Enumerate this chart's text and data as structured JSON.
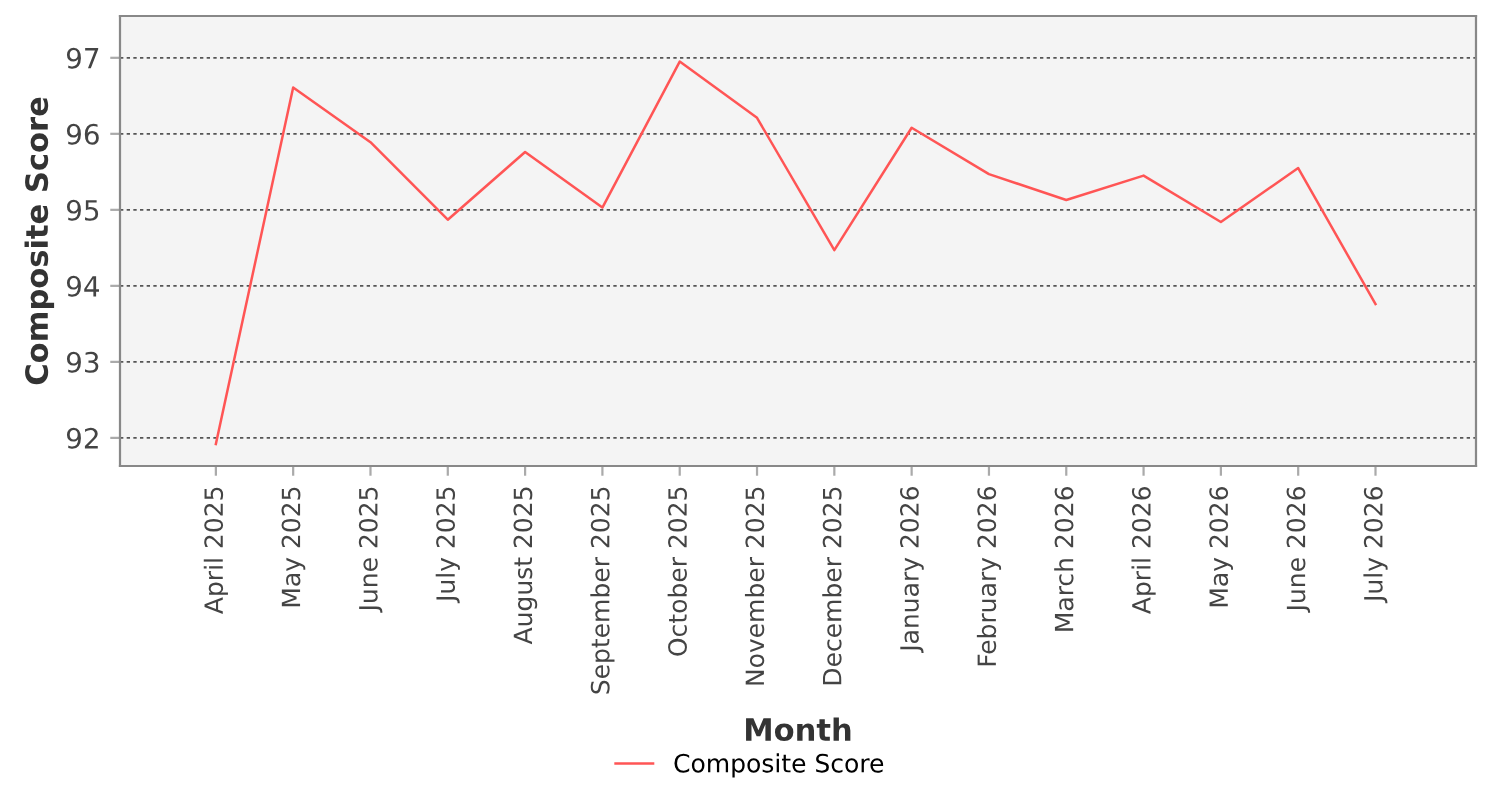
{
  "chart_data": {
    "type": "line",
    "xlabel": "Month",
    "ylabel": "Composite Score",
    "categories": [
      "April 2025",
      "May 2025",
      "June 2025",
      "July 2025",
      "August 2025",
      "September 2025",
      "October 2025",
      "November 2025",
      "December 2025",
      "January 2026",
      "February 2026",
      "March 2026",
      "April 2026",
      "May 2026",
      "June 2026",
      "July 2026"
    ],
    "series": [
      {
        "name": "Composite Score",
        "color": "#ff5555",
        "values": [
          91.92,
          96.61,
          95.89,
          94.87,
          95.76,
          95.03,
          96.95,
          96.21,
          94.47,
          96.08,
          95.47,
          95.13,
          95.45,
          94.84,
          95.55,
          93.76
        ]
      }
    ],
    "ylim": [
      91.63,
      97.55
    ],
    "yticks": [
      92,
      93,
      94,
      95,
      96,
      97
    ],
    "grid": "y",
    "legend": "bottom",
    "marker": "none",
    "line_style": "solid"
  }
}
